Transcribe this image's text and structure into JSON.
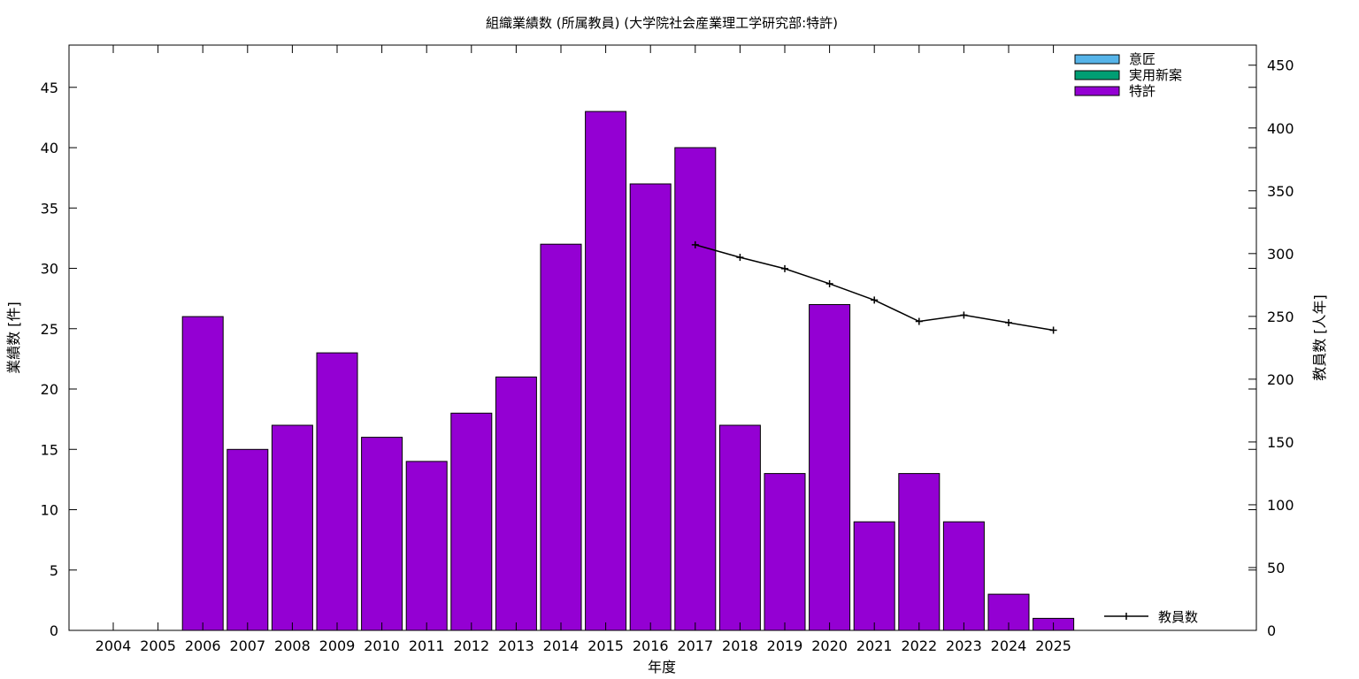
{
  "chart_data": {
    "type": "bar",
    "title": "組織業績数 (所属教員) (大学院社会産業理工学研究部:特許)",
    "xlabel": "年度",
    "ylabel": "業績数 [件]",
    "y2label": "教員数 [人年]",
    "categories": [
      "2004",
      "2005",
      "2006",
      "2007",
      "2008",
      "2009",
      "2010",
      "2011",
      "2012",
      "2013",
      "2014",
      "2015",
      "2016",
      "2017",
      "2018",
      "2019",
      "2020",
      "2021",
      "2022",
      "2023",
      "2024",
      "2025"
    ],
    "ylim": [
      0,
      48.5
    ],
    "y2lim": [
      0,
      466
    ],
    "yticks": [
      0,
      5,
      10,
      15,
      20,
      25,
      30,
      35,
      40,
      45
    ],
    "y2ticks": [
      0,
      50,
      100,
      150,
      200,
      250,
      300,
      350,
      400,
      450
    ],
    "series": [
      {
        "name": "意匠",
        "color": "#56b4e9",
        "values": [
          0,
          0,
          0,
          0,
          0,
          0,
          0,
          0,
          0,
          0,
          0,
          0,
          0,
          0,
          0,
          0,
          0,
          0,
          0,
          0,
          0,
          0
        ]
      },
      {
        "name": "実用新案",
        "color": "#009e73",
        "values": [
          0,
          0,
          0,
          0,
          0,
          0,
          0,
          0,
          0,
          0,
          0,
          0,
          0,
          0,
          0,
          0,
          0,
          0,
          0,
          0,
          0,
          0
        ]
      },
      {
        "name": "特許",
        "color": "#9400d3",
        "values": [
          0,
          0,
          26,
          15,
          17,
          23,
          16,
          14,
          18,
          21,
          32,
          43,
          37,
          40,
          17,
          13,
          27,
          9,
          13,
          9,
          3,
          1
        ]
      }
    ],
    "line_series": {
      "name": "教員数",
      "color": "#000000",
      "x": [
        "2017",
        "2018",
        "2019",
        "2020",
        "2021",
        "2022",
        "2023",
        "2024",
        "2025"
      ],
      "values": [
        307,
        297,
        288,
        276,
        263,
        246,
        251,
        245,
        239
      ]
    },
    "legend_position": "top-right",
    "grid": false
  }
}
